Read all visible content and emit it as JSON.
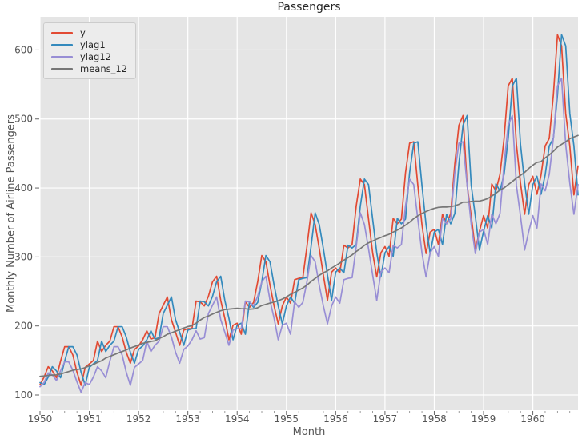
{
  "chart_data": {
    "type": "line",
    "title": "Passengers",
    "xlabel": "Month",
    "ylabel": "Monthly Number of Airline Passengers",
    "x_start_month": "1950-01",
    "x_freq": "monthly",
    "n_points": 132,
    "xlim": [
      1950.0,
      1960.9167
    ],
    "ylim": [
      78,
      648
    ],
    "xticks": [
      1950,
      1951,
      1952,
      1953,
      1954,
      1955,
      1956,
      1957,
      1958,
      1959,
      1960
    ],
    "x_minor_tick_interval_years": 0.25,
    "yticks": [
      100,
      200,
      300,
      400,
      500,
      600
    ],
    "grid": true,
    "legend_position": "upper left",
    "style": {
      "plot_bg": "#e5e5e5",
      "grid_color": "#ffffff",
      "tick_color": "#666666",
      "tick_label_color": "#555555",
      "title_color": "#262626",
      "legend_bg": "#ececec",
      "legend_border": "#cccccc",
      "legend_text": "#262626"
    },
    "series": [
      {
        "name": "y",
        "color": "#E24A33",
        "values": [
          115,
          126,
          141,
          135,
          125,
          149,
          170,
          170,
          158,
          133,
          114,
          140,
          145,
          150,
          178,
          163,
          172,
          178,
          199,
          199,
          184,
          162,
          146,
          166,
          171,
          180,
          193,
          181,
          183,
          218,
          230,
          242,
          209,
          191,
          172,
          194,
          196,
          196,
          236,
          235,
          229,
          243,
          264,
          272,
          237,
          211,
          180,
          201,
          204,
          188,
          235,
          227,
          234,
          264,
          302,
          293,
          259,
          229,
          203,
          229,
          242,
          233,
          267,
          269,
          270,
          315,
          364,
          347,
          312,
          274,
          237,
          278,
          284,
          277,
          317,
          313,
          318,
          374,
          413,
          405,
          355,
          306,
          271,
          306,
          315,
          301,
          356,
          348,
          355,
          422,
          465,
          467,
          404,
          347,
          305,
          336,
          340,
          318,
          362,
          348,
          363,
          435,
          491,
          505,
          404,
          359,
          310,
          337,
          360,
          342,
          406,
          396,
          420,
          472,
          548,
          559,
          463,
          407,
          362,
          405,
          417,
          391,
          419,
          461,
          472,
          535,
          622,
          606,
          508,
          461,
          390,
          432
        ]
      },
      {
        "name": "ylag1",
        "color": "#348ABD",
        "values": [
          118,
          115,
          126,
          141,
          135,
          125,
          149,
          170,
          170,
          158,
          133,
          114,
          140,
          145,
          150,
          178,
          163,
          172,
          178,
          199,
          199,
          184,
          162,
          146,
          166,
          171,
          180,
          193,
          181,
          183,
          218,
          230,
          242,
          209,
          191,
          172,
          194,
          196,
          196,
          236,
          235,
          229,
          243,
          264,
          272,
          237,
          211,
          180,
          201,
          204,
          188,
          235,
          227,
          234,
          264,
          302,
          293,
          259,
          229,
          203,
          229,
          242,
          233,
          267,
          269,
          270,
          315,
          364,
          347,
          312,
          274,
          237,
          278,
          284,
          277,
          317,
          313,
          318,
          374,
          413,
          405,
          355,
          306,
          271,
          306,
          315,
          301,
          356,
          348,
          355,
          422,
          465,
          467,
          404,
          347,
          305,
          336,
          340,
          318,
          362,
          348,
          363,
          435,
          491,
          505,
          404,
          359,
          310,
          337,
          360,
          342,
          406,
          396,
          420,
          472,
          548,
          559,
          463,
          407,
          362,
          405,
          417,
          391,
          419,
          461,
          472,
          535,
          622,
          606,
          508,
          461,
          390
        ]
      },
      {
        "name": "ylag12",
        "color": "#988ED5",
        "values": [
          112,
          118,
          132,
          129,
          121,
          135,
          148,
          148,
          136,
          119,
          104,
          118,
          115,
          126,
          141,
          135,
          125,
          149,
          170,
          170,
          158,
          133,
          114,
          140,
          145,
          150,
          178,
          163,
          172,
          178,
          199,
          199,
          184,
          162,
          146,
          166,
          171,
          180,
          193,
          181,
          183,
          218,
          230,
          242,
          209,
          191,
          172,
          194,
          196,
          196,
          236,
          235,
          229,
          243,
          264,
          272,
          237,
          211,
          180,
          201,
          204,
          188,
          235,
          227,
          234,
          264,
          302,
          293,
          259,
          229,
          203,
          229,
          242,
          233,
          267,
          269,
          270,
          315,
          364,
          347,
          312,
          274,
          237,
          278,
          284,
          277,
          317,
          313,
          318,
          374,
          413,
          405,
          355,
          306,
          271,
          306,
          315,
          301,
          356,
          348,
          355,
          422,
          465,
          467,
          404,
          347,
          305,
          336,
          340,
          318,
          362,
          348,
          363,
          435,
          491,
          505,
          404,
          359,
          310,
          337,
          360,
          342,
          406,
          396,
          420,
          472,
          548,
          559,
          463,
          407,
          362,
          405
        ]
      },
      {
        "name": "means_12",
        "color": "#777777",
        "values": [
          126.92,
          127.58,
          128.33,
          128.83,
          129.17,
          130.33,
          132.17,
          134.0,
          135.83,
          137.0,
          137.83,
          139.67,
          142.17,
          144.17,
          147.25,
          149.58,
          153.5,
          155.92,
          158.33,
          160.75,
          162.92,
          165.33,
          168.0,
          170.17,
          172.33,
          174.83,
          176.08,
          177.58,
          178.5,
          181.83,
          184.42,
          188.0,
          190.08,
          192.5,
          194.67,
          197.0,
          199.08,
          200.42,
          204.0,
          208.5,
          212.33,
          214.42,
          217.25,
          219.75,
          222.08,
          223.75,
          224.42,
          225.0,
          225.67,
          225.0,
          224.92,
          224.25,
          224.67,
          226.42,
          229.58,
          231.33,
          233.17,
          234.67,
          236.58,
          238.92,
          242.08,
          245.83,
          248.5,
          252.0,
          255.0,
          259.25,
          264.42,
          268.92,
          273.33,
          277.08,
          279.92,
          284.0,
          287.5,
          291.17,
          295.33,
          299.0,
          303.0,
          307.92,
          312.0,
          316.83,
          320.42,
          323.08,
          325.92,
          328.25,
          330.83,
          332.83,
          336.08,
          339.0,
          342.08,
          346.08,
          350.42,
          355.58,
          359.67,
          363.08,
          365.92,
          368.42,
          370.5,
          371.92,
          372.42,
          372.42,
          373.08,
          374.17,
          376.33,
          379.5,
          379.5,
          380.5,
          380.92,
          381.0,
          382.67,
          384.67,
          388.33,
          392.33,
          397.08,
          400.17,
          404.92,
          409.42,
          414.33,
          418.33,
          422.67,
          428.33,
          433.08,
          437.17,
          438.25,
          443.67,
          448.0,
          453.25,
          459.42,
          463.33,
          467.08,
          471.58,
          473.92,
          476.17
        ]
      }
    ]
  }
}
